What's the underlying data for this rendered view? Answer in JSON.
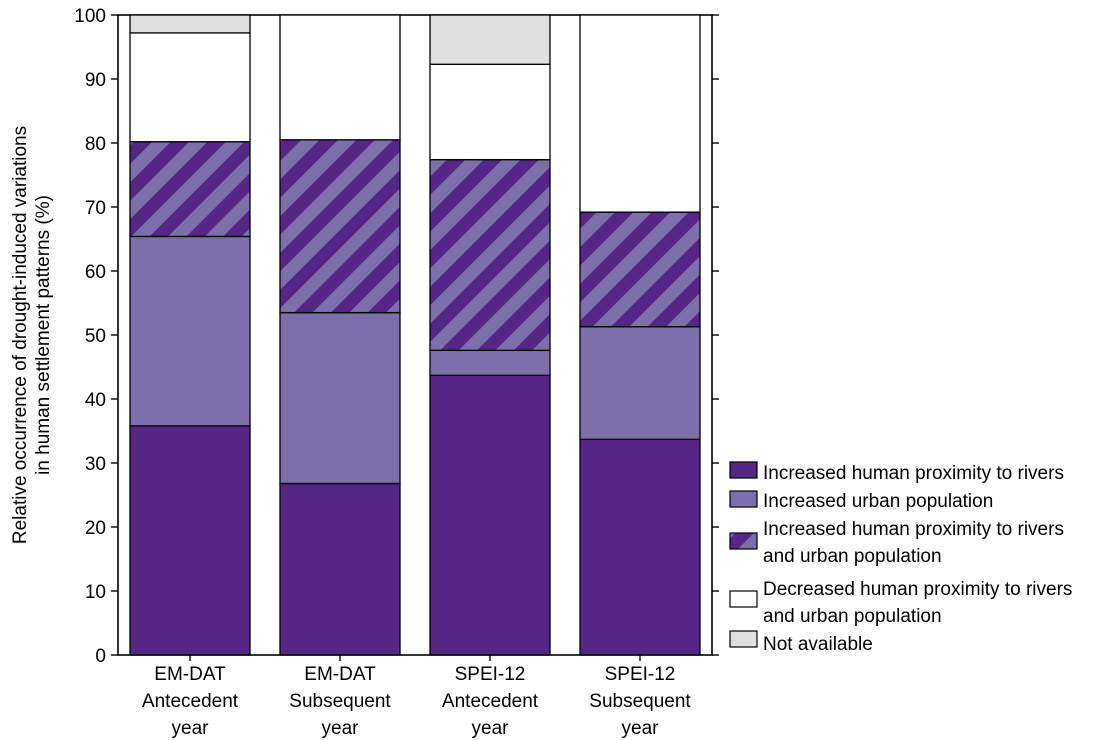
{
  "chart_data": {
    "type": "bar",
    "stacked": true,
    "categories": [
      [
        "EM-DAT",
        "Antecedent",
        "year"
      ],
      [
        "EM-DAT",
        "Subsequent",
        "year"
      ],
      [
        "SPEI-12",
        "Antecedent",
        "year"
      ],
      [
        "SPEI-12",
        "Subsequent",
        "year"
      ]
    ],
    "series": [
      {
        "name": "Increased human proximity to rivers",
        "values": [
          35.8,
          26.8,
          43.7,
          33.7
        ],
        "color": "#552686",
        "pattern": "solid"
      },
      {
        "name": "Increased urban population",
        "values": [
          29.6,
          26.7,
          3.9,
          17.6
        ],
        "color": "#7d6fab",
        "pattern": "solid"
      },
      {
        "name": "Increased human proximity to rivers and urban population",
        "values": [
          14.8,
          27.0,
          29.8,
          17.9
        ],
        "color": "#552686",
        "color2": "#7d6fab",
        "pattern": "hatched"
      },
      {
        "name": "Decreased human proximity to rivers and urban population",
        "values": [
          17.0,
          19.5,
          14.9,
          30.8
        ],
        "color": "#ffffff",
        "pattern": "solid"
      },
      {
        "name": "Not available",
        "values": [
          2.8,
          0.0,
          7.7,
          0.0
        ],
        "color": "#e0e0e0",
        "pattern": "solid"
      }
    ],
    "legend": [
      [
        "Increased human proximity to rivers"
      ],
      [
        "Increased urban population"
      ],
      [
        "Increased human proximity to rivers",
        "and urban population"
      ],
      [
        "Decreased human proximity to rivers",
        "and urban population"
      ],
      [
        "Not available"
      ]
    ],
    "ylabel": [
      "Relative occurrence of drought-induced variations",
      "in human settlement patterns (%)"
    ],
    "xlabel": "",
    "title": "",
    "ylim": [
      0,
      100
    ],
    "yticks": [
      0,
      10,
      20,
      30,
      40,
      50,
      60,
      70,
      80,
      90,
      100
    ],
    "legend_position": "bottom-right",
    "grid": false
  }
}
